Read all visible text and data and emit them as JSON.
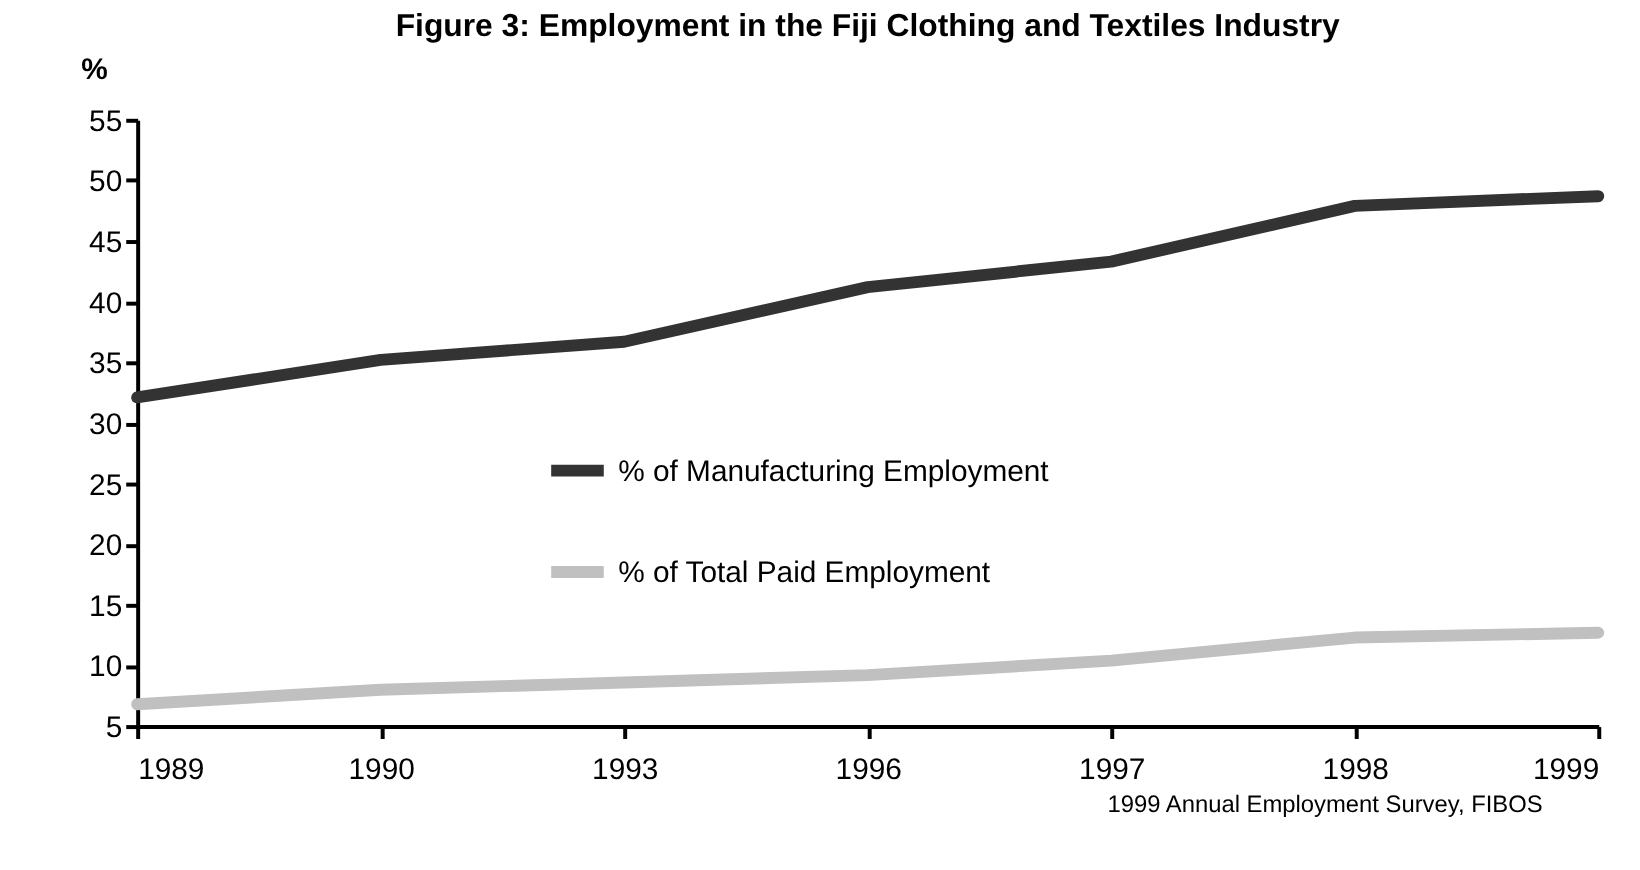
{
  "chart_data": {
    "type": "line",
    "title": "Figure 3: Employment in the Fiji Clothing and Textiles Industry",
    "ylabel": "%",
    "categories": [
      "1989",
      "1990",
      "1993",
      "1996",
      "1997",
      "1998",
      "1999"
    ],
    "series": [
      {
        "name": "% of Manufacturing Employment",
        "color": "#333333",
        "values": [
          32.1,
          35.2,
          36.7,
          41.2,
          43.3,
          47.9,
          48.7
        ]
      },
      {
        "name": "% of Total Paid Employment",
        "color": "#c0c0c0",
        "values": [
          6.8,
          8.0,
          8.6,
          9.2,
          10.4,
          12.3,
          12.7
        ]
      }
    ],
    "ylim": [
      5,
      55
    ],
    "yticks": [
      5,
      10,
      15,
      20,
      25,
      30,
      35,
      40,
      45,
      50,
      55
    ],
    "grid": false,
    "legend": "center",
    "marker": "none",
    "line_style": "solid",
    "annotations": [
      "1999 Annual Employment Survey, FIBOS"
    ]
  }
}
